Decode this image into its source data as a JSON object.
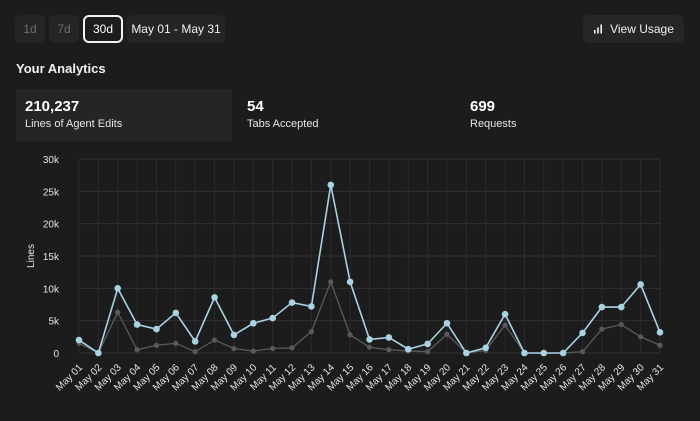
{
  "toolbar": {
    "ranges": [
      {
        "label": "1d",
        "active": false
      },
      {
        "label": "7d",
        "active": false
      },
      {
        "label": "30d",
        "active": true
      }
    ],
    "date_range": "May 01 - May 31",
    "view_usage": "View Usage"
  },
  "section_title": "Your Analytics",
  "metrics": [
    {
      "value": "210,237",
      "label": "Lines of Agent Edits"
    },
    {
      "value": "54",
      "label": "Tabs Accepted"
    },
    {
      "value": "699",
      "label": "Requests"
    }
  ],
  "colors": {
    "accent_series": "#a9d2e2",
    "secondary_series": "#5a5a5c",
    "background": "#1b1b1c"
  },
  "chart_data": {
    "type": "line",
    "ylabel": "Lines",
    "ylim": [
      0,
      30000
    ],
    "yticks": [
      0,
      5000,
      10000,
      15000,
      20000,
      25000,
      30000
    ],
    "ytick_labels": [
      "0",
      "5k",
      "10k",
      "15k",
      "20k",
      "25k",
      "30k"
    ],
    "grid": true,
    "categories": [
      "May 01",
      "May 02",
      "May 03",
      "May 04",
      "May 05",
      "May 06",
      "May 07",
      "May 08",
      "May 09",
      "May 10",
      "May 11",
      "May 12",
      "May 13",
      "May 14",
      "May 15",
      "May 16",
      "May 17",
      "May 18",
      "May 19",
      "May 20",
      "May 21",
      "May 22",
      "May 23",
      "May 24",
      "May 25",
      "May 26",
      "May 27",
      "May 28",
      "May 29",
      "May 30",
      "May 31"
    ],
    "series": [
      {
        "values": [
          2000,
          0,
          10000,
          4400,
          3700,
          6200,
          1800,
          8600,
          2800,
          4600,
          5400,
          7800,
          7200,
          26000,
          11000,
          2100,
          2400,
          600,
          1400,
          4600,
          0,
          800,
          6000,
          0,
          0,
          0,
          3100,
          7100,
          7100,
          10600,
          3200
        ]
      },
      {
        "values": [
          1500,
          0,
          6300,
          500,
          1200,
          1500,
          200,
          2000,
          700,
          300,
          700,
          800,
          3300,
          11000,
          2800,
          900,
          500,
          300,
          200,
          2900,
          0,
          400,
          4300,
          0,
          0,
          0,
          200,
          3700,
          4400,
          2500,
          1200
        ]
      }
    ]
  }
}
